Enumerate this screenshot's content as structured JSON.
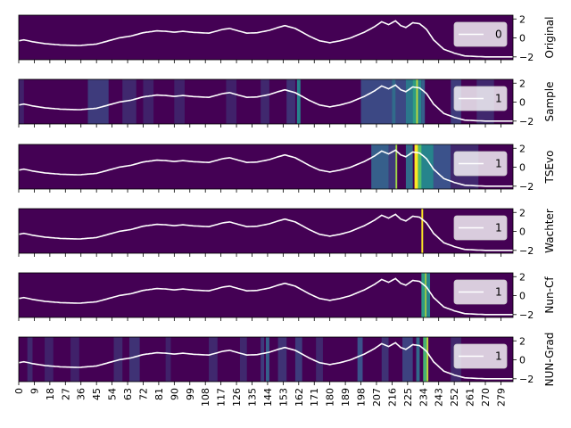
{
  "chart_data": {
    "type": "heatmap",
    "x_ticks": [
      0,
      9,
      18,
      27,
      36,
      45,
      54,
      63,
      72,
      81,
      90,
      99,
      108,
      117,
      126,
      135,
      144,
      153,
      162,
      171,
      180,
      189,
      198,
      207,
      216,
      225,
      234,
      243,
      252,
      261,
      270,
      279
    ],
    "xlim": [
      0,
      286
    ],
    "ylim": [
      -2.3,
      2.4
    ],
    "y_ticks": [
      -2,
      0,
      2
    ],
    "colormap": "viridis",
    "line_color": "#ffffff",
    "series_keyframes": [
      [
        0,
        -0.3
      ],
      [
        3,
        -0.2
      ],
      [
        8,
        -0.4
      ],
      [
        15,
        -0.6
      ],
      [
        25,
        -0.75
      ],
      [
        35,
        -0.8
      ],
      [
        45,
        -0.65
      ],
      [
        52,
        -0.3
      ],
      [
        58,
        0.0
      ],
      [
        65,
        0.2
      ],
      [
        72,
        0.55
      ],
      [
        80,
        0.75
      ],
      [
        85,
        0.7
      ],
      [
        90,
        0.6
      ],
      [
        95,
        0.7
      ],
      [
        100,
        0.6
      ],
      [
        110,
        0.5
      ],
      [
        118,
        0.9
      ],
      [
        122,
        1.0
      ],
      [
        126,
        0.8
      ],
      [
        132,
        0.5
      ],
      [
        138,
        0.55
      ],
      [
        145,
        0.8
      ],
      [
        150,
        1.1
      ],
      [
        154,
        1.3
      ],
      [
        160,
        1.0
      ],
      [
        168,
        0.2
      ],
      [
        174,
        -0.3
      ],
      [
        180,
        -0.5
      ],
      [
        186,
        -0.3
      ],
      [
        192,
        0.0
      ],
      [
        200,
        0.6
      ],
      [
        206,
        1.2
      ],
      [
        210,
        1.7
      ],
      [
        214,
        1.4
      ],
      [
        218,
        1.8
      ],
      [
        221,
        1.3
      ],
      [
        224,
        1.1
      ],
      [
        228,
        1.6
      ],
      [
        232,
        1.5
      ],
      [
        236,
        0.9
      ],
      [
        240,
        -0.2
      ],
      [
        246,
        -1.2
      ],
      [
        252,
        -1.6
      ],
      [
        258,
        -1.9
      ],
      [
        270,
        -2.0
      ],
      [
        286,
        -2.0
      ]
    ],
    "panels": [
      {
        "ylabel": "Original",
        "legend": "0",
        "background": [],
        "highlights": []
      },
      {
        "ylabel": "Sample",
        "legend": "1",
        "background": [
          [
            0,
            3,
            0.1
          ],
          [
            40,
            52,
            0.18
          ],
          [
            60,
            68,
            0.12
          ],
          [
            72,
            78,
            0.1
          ],
          [
            90,
            96,
            0.1
          ],
          [
            120,
            126,
            0.1
          ],
          [
            140,
            145,
            0.12
          ],
          [
            155,
            160,
            0.15
          ],
          [
            161,
            163,
            0.45
          ],
          [
            198,
            232,
            0.22
          ],
          [
            216,
            218,
            0.35
          ],
          [
            224,
            228,
            0.4
          ],
          [
            250,
            256,
            0.18
          ],
          [
            265,
            275,
            0.12
          ]
        ],
        "highlights": [
          [
            228,
            230,
            0.55
          ],
          [
            230,
            231,
            0.9
          ],
          [
            231,
            233,
            0.45
          ],
          [
            233,
            235,
            0.3
          ]
        ]
      },
      {
        "ylabel": "TSEvo",
        "legend": "1",
        "background": [
          [
            204,
            214,
            0.3
          ],
          [
            214,
            218,
            0.18
          ],
          [
            224,
            228,
            0.35
          ],
          [
            232,
            240,
            0.45
          ],
          [
            240,
            250,
            0.25
          ],
          [
            250,
            266,
            0.12
          ]
        ],
        "highlights": [
          [
            218,
            219,
            0.85
          ],
          [
            229,
            231,
            1.0
          ],
          [
            231,
            233,
            0.7
          ]
        ]
      },
      {
        "ylabel": "Wachter",
        "legend": "1",
        "background": [],
        "highlights": [
          [
            233,
            234,
            1.0
          ]
        ]
      },
      {
        "ylabel": "Nun-Cf",
        "legend": "1",
        "background": [],
        "highlights": [
          [
            233,
            235,
            0.55
          ],
          [
            235,
            236,
            0.85
          ],
          [
            236,
            238,
            0.45
          ]
        ]
      },
      {
        "ylabel": "NUN-Grad",
        "legend": "1",
        "background": [
          [
            5,
            8,
            0.12
          ],
          [
            15,
            20,
            0.1
          ],
          [
            30,
            35,
            0.1
          ],
          [
            55,
            60,
            0.12
          ],
          [
            64,
            70,
            0.15
          ],
          [
            85,
            88,
            0.1
          ],
          [
            110,
            115,
            0.12
          ],
          [
            128,
            132,
            0.12
          ],
          [
            140,
            142,
            0.18
          ],
          [
            143,
            145,
            0.3
          ],
          [
            150,
            155,
            0.15
          ],
          [
            160,
            164,
            0.18
          ],
          [
            172,
            176,
            0.12
          ],
          [
            196,
            199,
            0.25
          ],
          [
            210,
            214,
            0.15
          ],
          [
            222,
            228,
            0.2
          ],
          [
            250,
            256,
            0.12
          ]
        ],
        "highlights": [
          [
            230,
            232,
            0.35
          ],
          [
            234,
            236,
            0.65
          ],
          [
            236,
            237,
            0.9
          ]
        ]
      }
    ]
  }
}
